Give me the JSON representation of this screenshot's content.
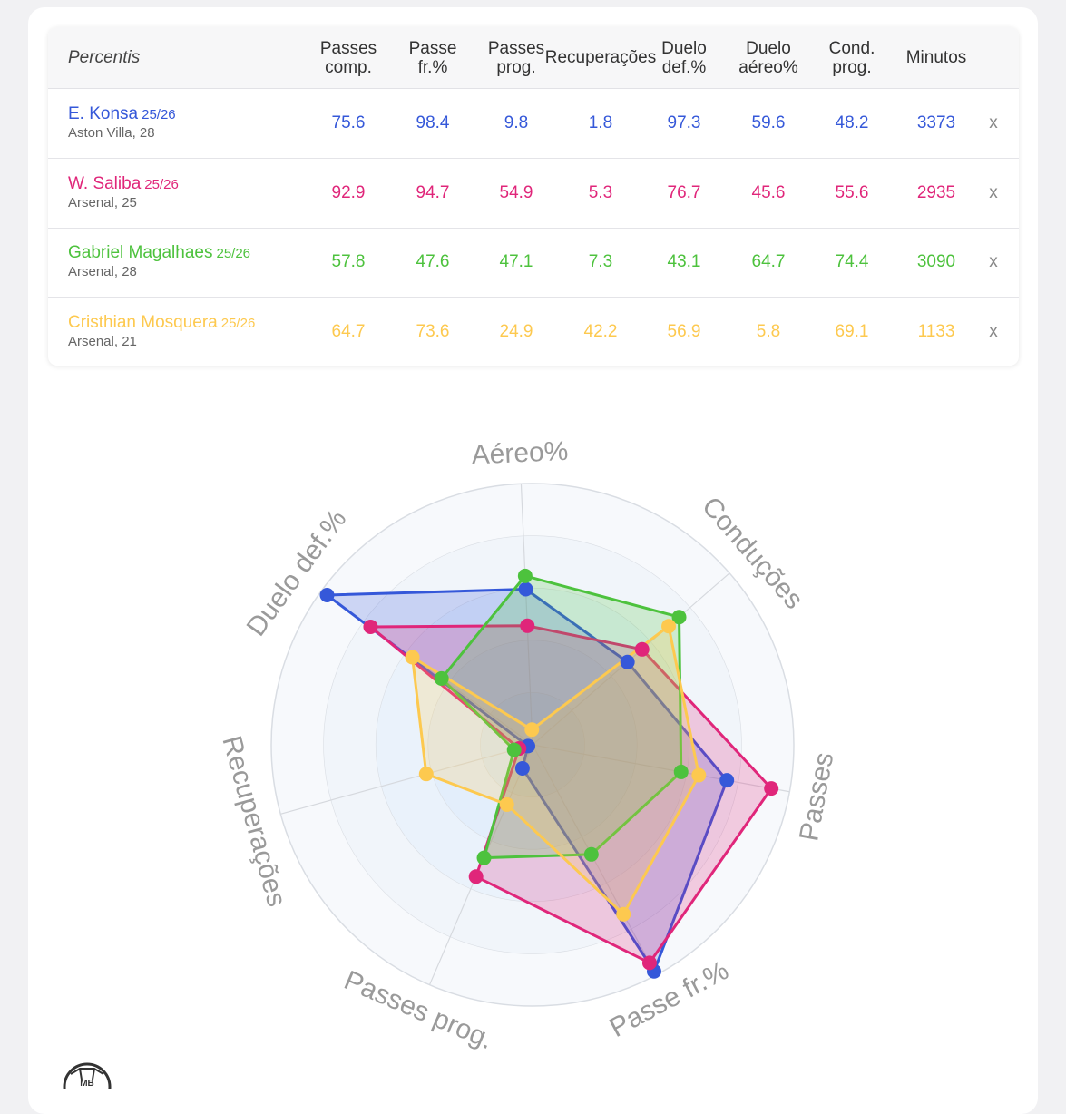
{
  "table": {
    "corner_label": "Percentis",
    "columns": [
      "Passes\ncomp.",
      "Passe\nfr.%",
      "Passes\nprog.",
      "Recuperações",
      "Duelo\ndef.%",
      "Duelo\naéreo%",
      "Cond.\nprog.",
      "Minutos"
    ],
    "close_label": "x",
    "rows": [
      {
        "name": "E. Konsa",
        "season": "25/26",
        "team": "Aston Villa, 28",
        "color": "#3558d9",
        "values": [
          "75.6",
          "98.4",
          "9.8",
          "1.8",
          "97.3",
          "59.6",
          "48.2",
          "3373"
        ]
      },
      {
        "name": "W. Saliba",
        "season": "25/26",
        "team": "Arsenal, 25",
        "color": "#e0267a",
        "values": [
          "92.9",
          "94.7",
          "54.9",
          "5.3",
          "76.7",
          "45.6",
          "55.6",
          "2935"
        ]
      },
      {
        "name": "Gabriel Magalhaes",
        "season": "25/26",
        "team": "Arsenal, 28",
        "color": "#4dc23d",
        "values": [
          "57.8",
          "47.6",
          "47.1",
          "7.3",
          "43.1",
          "64.7",
          "74.4",
          "3090"
        ]
      },
      {
        "name": "Cristhian Mosquera",
        "season": "25/26",
        "team": "Arsenal, 21",
        "color": "#fdc94f",
        "values": [
          "64.7",
          "73.6",
          "24.9",
          "42.2",
          "56.9",
          "5.8",
          "69.1",
          "1133"
        ]
      }
    ]
  },
  "chart_data": {
    "type": "radar",
    "axes": [
      "Aéreo%",
      "Conduções",
      "Passes",
      "Passe fr.%",
      "Passes prog.",
      "Recuperações",
      "Duelo def.%"
    ],
    "range": [
      0,
      100
    ],
    "series": [
      {
        "name": "E. Konsa",
        "color": "#3558d9",
        "values": [
          59.6,
          48.2,
          75.6,
          98.4,
          9.8,
          1.8,
          97.3
        ]
      },
      {
        "name": "W. Saliba",
        "color": "#e0267a",
        "values": [
          45.6,
          55.6,
          92.9,
          94.7,
          54.9,
          5.3,
          76.7
        ]
      },
      {
        "name": "Gabriel Magalhaes",
        "color": "#4dc23d",
        "values": [
          64.7,
          74.4,
          57.8,
          47.6,
          47.1,
          7.3,
          43.1
        ]
      },
      {
        "name": "Cristhian Mosquera",
        "color": "#fdc94f",
        "values": [
          5.8,
          69.1,
          64.7,
          73.6,
          24.9,
          42.2,
          56.9
        ]
      }
    ]
  },
  "logo": {
    "text": "MB",
    "icon": "football-logo-icon"
  }
}
